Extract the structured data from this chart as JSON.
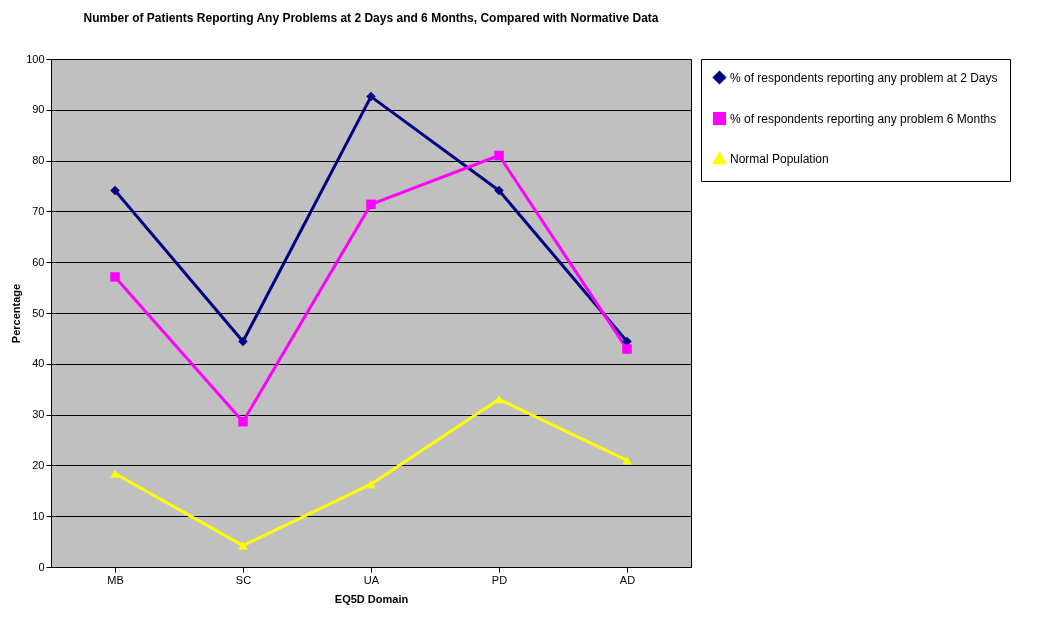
{
  "chart_data": {
    "type": "line",
    "title": "Number of Patients Reporting Any Problems at 2 Days and 6 Months, Compared with Normative Data",
    "xlabel": "EQ5D Domain",
    "ylabel": "Percentage",
    "categories": [
      "MB",
      "SC",
      "UA",
      "PD",
      "AD"
    ],
    "series": [
      {
        "name": "% of respondents reporting any problem at 2 Days",
        "color": "#000080",
        "marker": "diamond",
        "values": [
          74.1,
          44.4,
          92.6,
          74.1,
          44.4
        ]
      },
      {
        "name": "% of respondents reporting any problem 6 Months",
        "color": "#ff00ff",
        "marker": "square",
        "values": [
          57.1,
          28.6,
          71.4,
          81.0,
          42.9
        ]
      },
      {
        "name": "Normal Population",
        "color": "#ffff00",
        "marker": "triangle",
        "values": [
          18.4,
          4.2,
          16.3,
          33.0,
          21.0
        ]
      }
    ],
    "ylim": [
      0,
      100
    ],
    "yticks": [
      0,
      10,
      20,
      30,
      40,
      50,
      60,
      70,
      80,
      90,
      100
    ],
    "grid": "y",
    "legend": "right",
    "line_style": "solid"
  }
}
